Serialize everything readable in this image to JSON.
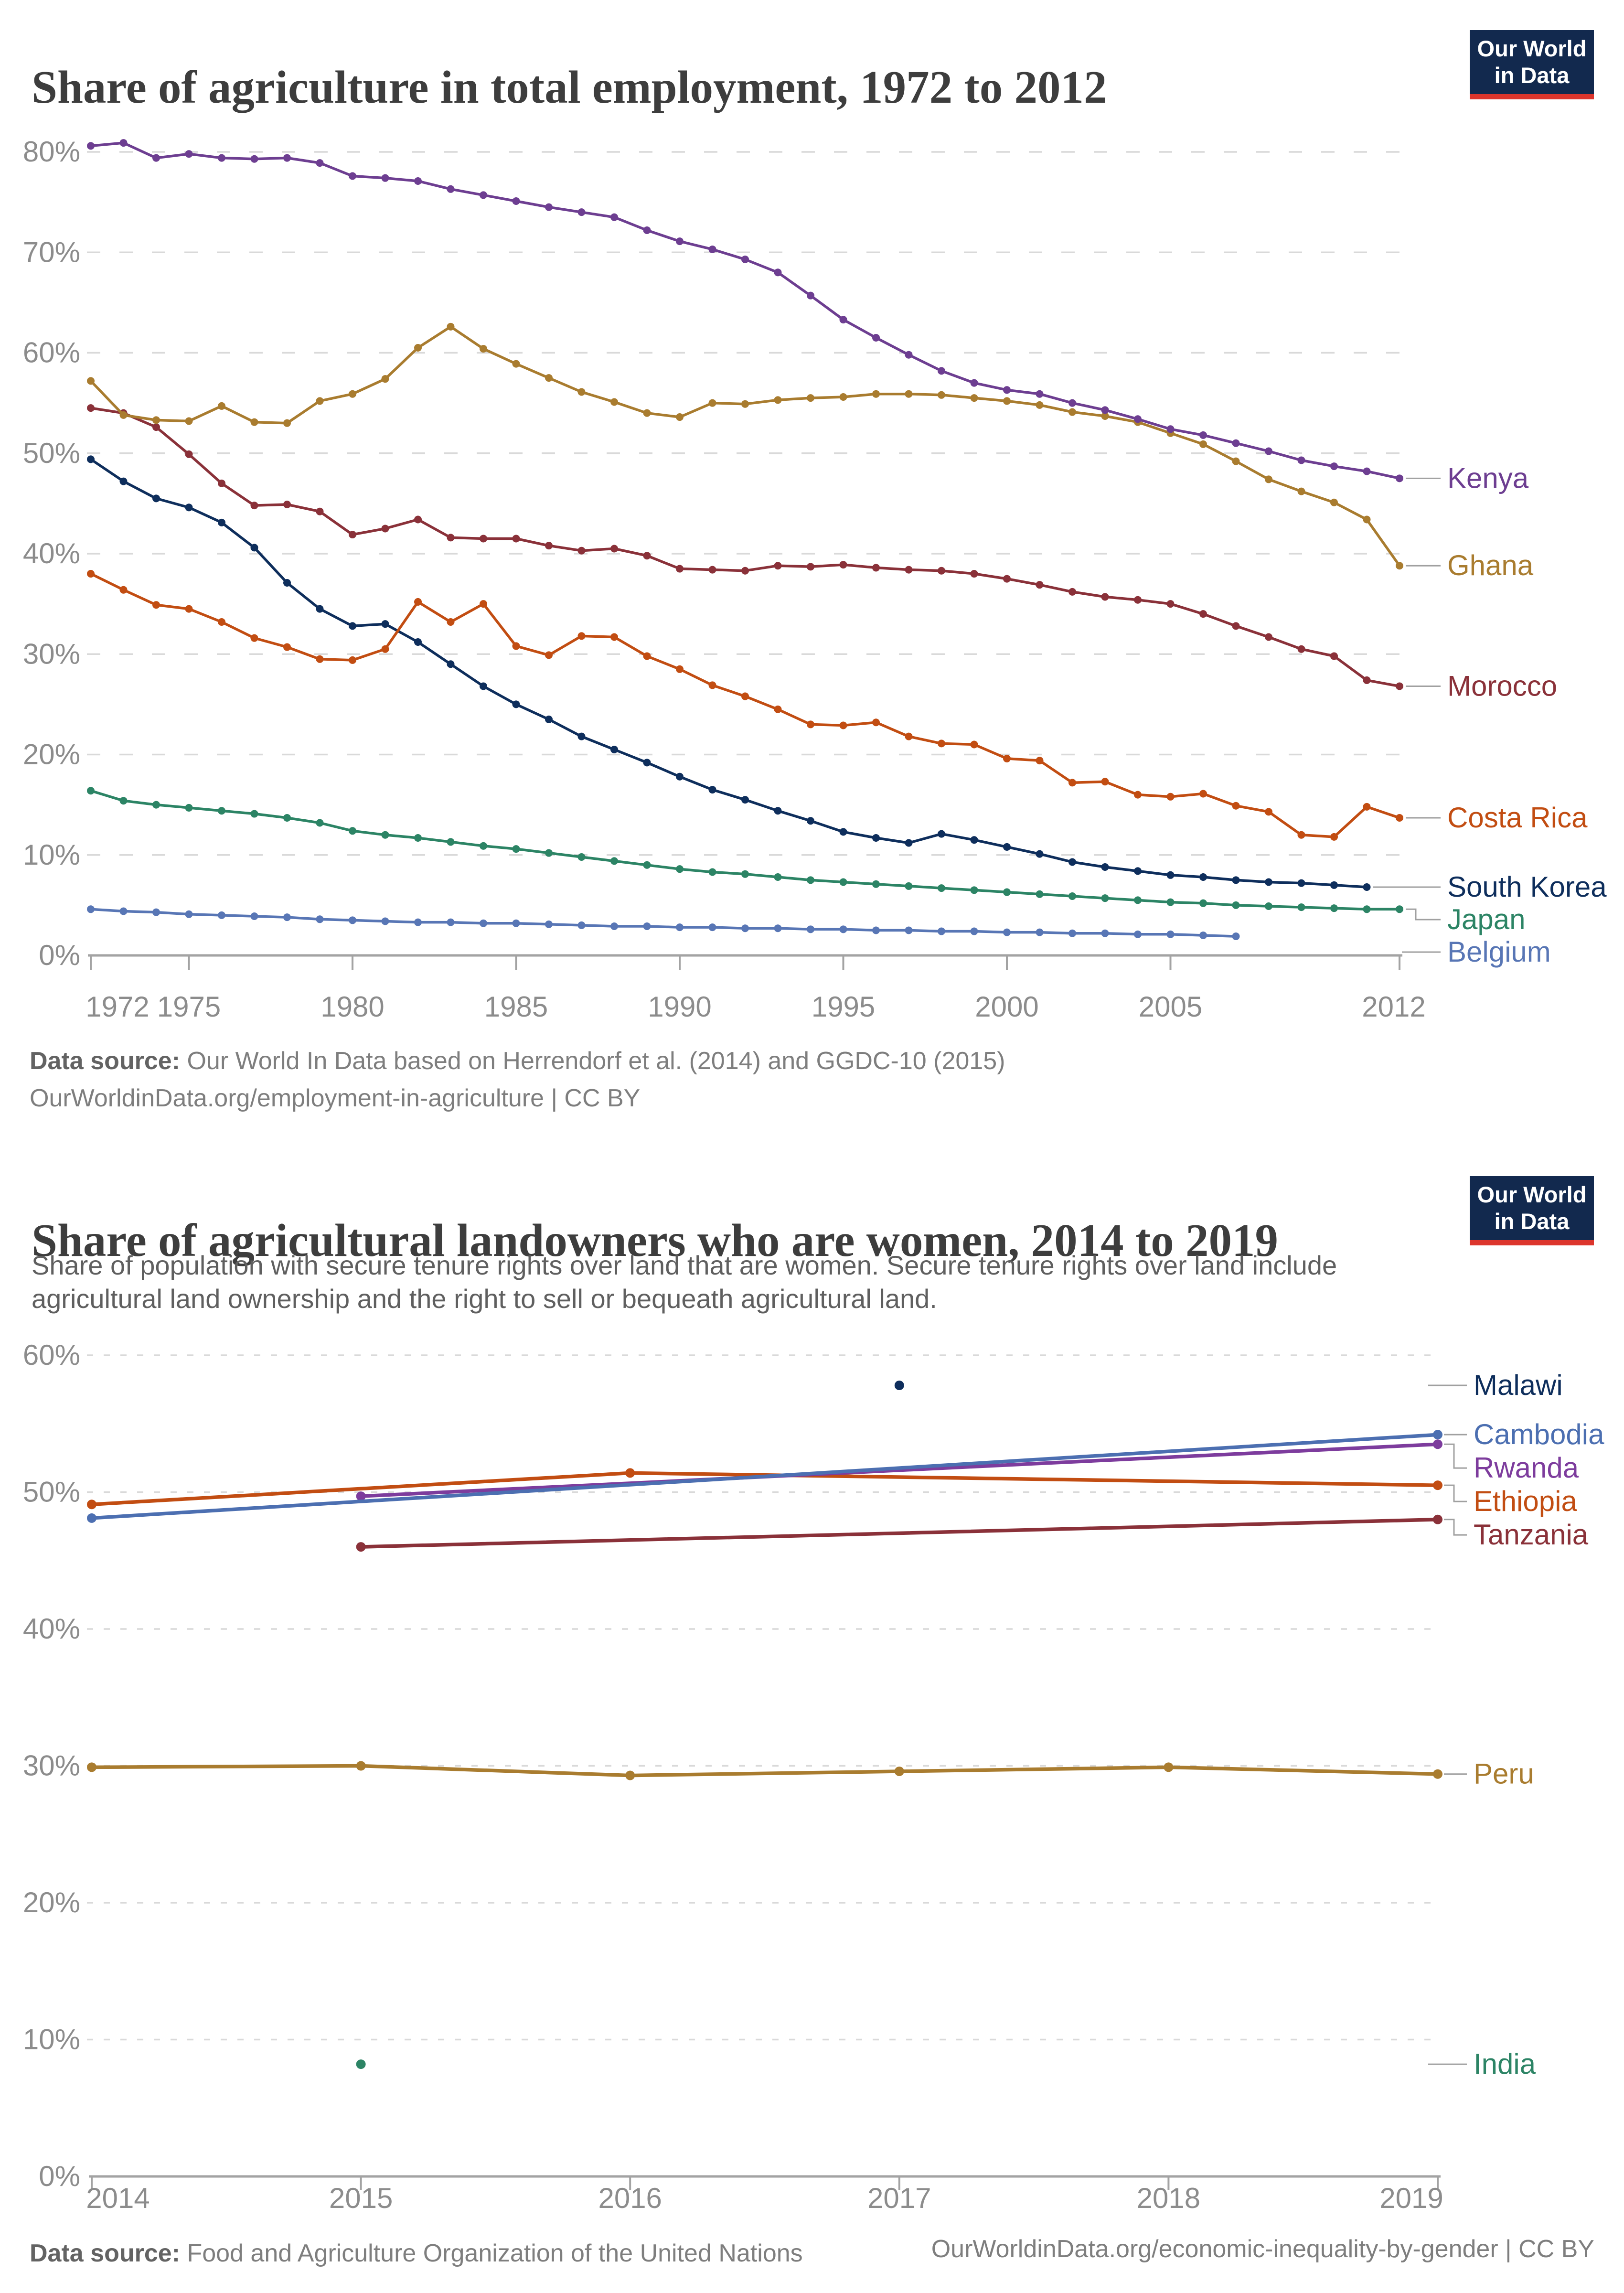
{
  "logo": {
    "line1": "Our World",
    "line2": "in Data",
    "bg_color": "#12294e",
    "stripe_color": "#dc352c"
  },
  "style_colors": {
    "title": "#3d3d3d",
    "subtitle": "#5f5f5f",
    "tick_text": "#8c8c8c",
    "gridline": "#d9d9d9",
    "axis": "#a3a3a3",
    "connector": "#a0a0a0",
    "footer": "#7e7e7e"
  },
  "charts": [
    {
      "title": "Share of agriculture in total employment, 1972 to 2012",
      "footer": {
        "label": "Data source:",
        "text": " Our World In Data based on Herrendorf et al. (2014) and GGDC-10 (2015)",
        "line2": "OurWorldinData.org/employment-in-agriculture | CC BY"
      },
      "chart_data": {
        "type": "line",
        "title": "Share of agriculture in total employment, 1972 to 2012",
        "xlabel": "",
        "ylabel": "",
        "xlim": [
          1972,
          2012
        ],
        "ylim": [
          0,
          80
        ],
        "y_format": "percent",
        "grid": true,
        "legend": "right-edge-labels",
        "x_ticks": [
          1972,
          1975,
          1980,
          1985,
          1990,
          1995,
          2000,
          2005,
          2012
        ],
        "y_ticks": [
          0,
          10,
          20,
          30,
          40,
          50,
          60,
          70,
          80
        ],
        "series": [
          {
            "name": "Belgium",
            "color": "#5876b5",
            "start_year": 1972,
            "values": [
              4.6,
              4.4,
              4.3,
              4.1,
              4.0,
              3.9,
              3.8,
              3.6,
              3.5,
              3.4,
              3.3,
              3.3,
              3.2,
              3.2,
              3.1,
              3.0,
              2.9,
              2.9,
              2.8,
              2.8,
              2.7,
              2.7,
              2.6,
              2.6,
              2.5,
              2.5,
              2.4,
              2.4,
              2.3,
              2.3,
              2.2,
              2.2,
              2.1,
              2.1,
              2.0,
              1.9
            ]
          },
          {
            "name": "Japan",
            "color": "#2c8465",
            "start_year": 1972,
            "values": [
              16.4,
              15.4,
              15.0,
              14.7,
              14.4,
              14.1,
              13.7,
              13.2,
              12.4,
              12.0,
              11.7,
              11.3,
              10.9,
              10.6,
              10.2,
              9.8,
              9.4,
              9.0,
              8.6,
              8.3,
              8.1,
              7.8,
              7.5,
              7.3,
              7.1,
              6.9,
              6.7,
              6.5,
              6.3,
              6.1,
              5.9,
              5.7,
              5.5,
              5.3,
              5.2,
              5.0,
              4.9,
              4.8,
              4.7,
              4.6,
              4.6
            ]
          },
          {
            "name": "South Korea",
            "color": "#0e2e5c",
            "start_year": 1972,
            "values": [
              49.4,
              47.2,
              45.5,
              44.6,
              43.1,
              40.6,
              37.1,
              34.5,
              32.8,
              33.0,
              31.2,
              29.0,
              26.8,
              25.0,
              23.5,
              21.8,
              20.5,
              19.2,
              17.8,
              16.5,
              15.5,
              14.4,
              13.4,
              12.3,
              11.7,
              11.2,
              12.1,
              11.5,
              10.8,
              10.1,
              9.3,
              8.8,
              8.4,
              8.0,
              7.8,
              7.5,
              7.3,
              7.2,
              7.0,
              6.8
            ]
          },
          {
            "name": "Costa Rica",
            "color": "#c24d12",
            "start_year": 1972,
            "values": [
              38.0,
              36.4,
              34.9,
              34.5,
              33.2,
              31.6,
              30.7,
              29.5,
              29.4,
              30.5,
              35.2,
              33.2,
              35.0,
              30.8,
              29.9,
              31.8,
              31.7,
              29.8,
              28.5,
              26.9,
              25.8,
              24.5,
              23.0,
              22.9,
              23.2,
              21.8,
              21.1,
              21.0,
              19.6,
              19.4,
              17.2,
              17.3,
              16.0,
              15.8,
              16.1,
              14.9,
              14.3,
              12.0,
              11.8,
              14.8,
              13.7
            ]
          },
          {
            "name": "Morocco",
            "color": "#8a3139",
            "start_year": 1972,
            "values": [
              54.5,
              54.0,
              52.6,
              49.9,
              47.0,
              44.8,
              44.9,
              44.2,
              41.9,
              42.5,
              43.4,
              41.6,
              41.5,
              41.5,
              40.8,
              40.3,
              40.5,
              39.8,
              38.5,
              38.4,
              38.3,
              38.8,
              38.7,
              38.9,
              38.6,
              38.4,
              38.3,
              38.0,
              37.5,
              36.9,
              36.2,
              35.7,
              35.4,
              35.0,
              34.0,
              32.8,
              31.7,
              30.5,
              29.8,
              27.4,
              26.8
            ]
          },
          {
            "name": "Ghana",
            "color": "#a97c2f",
            "start_year": 1972,
            "values": [
              57.2,
              53.8,
              53.3,
              53.2,
              54.7,
              53.1,
              53.0,
              55.2,
              55.9,
              57.4,
              60.5,
              62.6,
              60.4,
              58.9,
              57.5,
              56.1,
              55.1,
              54.0,
              53.6,
              55.0,
              54.9,
              55.3,
              55.5,
              55.6,
              55.9,
              55.9,
              55.8,
              55.5,
              55.2,
              54.8,
              54.1,
              53.7,
              53.1,
              52.0,
              50.9,
              49.2,
              47.4,
              46.2,
              45.1,
              43.4,
              38.8
            ]
          },
          {
            "name": "Kenya",
            "color": "#6d3e91",
            "start_year": 1972,
            "values": [
              80.6,
              80.9,
              79.4,
              79.8,
              79.4,
              79.3,
              79.4,
              78.9,
              77.6,
              77.4,
              77.1,
              76.3,
              75.7,
              75.1,
              74.5,
              74.0,
              73.5,
              72.2,
              71.1,
              70.3,
              69.3,
              68.0,
              65.7,
              63.3,
              61.5,
              59.8,
              58.2,
              57.0,
              56.3,
              55.9,
              55.0,
              54.3,
              53.4,
              52.4,
              51.8,
              51.0,
              50.2,
              49.3,
              48.7,
              48.2,
              47.5
            ]
          }
        ]
      }
    },
    {
      "title": "Share of agricultural landowners who are women, 2014 to 2019",
      "subtitle_lines": [
        "Share of population with secure tenure rights over land that are women. Secure tenure rights over land include",
        "agricultural land ownership and the right to sell or bequeath agricultural land."
      ],
      "footer": {
        "label": "Data source:",
        "text": " Food and Agriculture Organization of the United Nations",
        "right": "OurWorldinData.org/economic-inequality-by-gender | CC BY"
      },
      "chart_data": {
        "type": "line",
        "title": "Share of agricultural landowners who are women, 2014 to 2019",
        "xlabel": "",
        "ylabel": "",
        "xlim": [
          2014,
          2019
        ],
        "ylim": [
          0,
          60
        ],
        "y_format": "percent",
        "grid": true,
        "legend": "right-edge-labels",
        "x_ticks": [
          2014,
          2015,
          2016,
          2017,
          2018,
          2019
        ],
        "y_ticks": [
          0,
          10,
          20,
          30,
          40,
          50,
          60
        ],
        "series": [
          {
            "name": "Ethiopia",
            "color": "#c24d12",
            "points": [
              [
                2014,
                49.1
              ],
              [
                2016,
                51.4
              ],
              [
                2019,
                50.5
              ]
            ]
          },
          {
            "name": "Tanzania",
            "color": "#8a3139",
            "points": [
              [
                2015,
                46.0
              ],
              [
                2019,
                48.0
              ]
            ]
          },
          {
            "name": "Rwanda",
            "color": "#7d3c9d",
            "points": [
              [
                2015,
                49.7
              ],
              [
                2019,
                53.5
              ]
            ]
          },
          {
            "name": "Cambodia",
            "color": "#4c6fb1",
            "points": [
              [
                2014,
                48.1
              ],
              [
                2019,
                54.2
              ]
            ]
          },
          {
            "name": "Peru",
            "color": "#a97c2f",
            "points": [
              [
                2014,
                29.9
              ],
              [
                2015,
                30.0
              ],
              [
                2016,
                29.3
              ],
              [
                2017,
                29.6
              ],
              [
                2018,
                29.9
              ],
              [
                2019,
                29.4
              ]
            ]
          },
          {
            "name": "Malawi",
            "color": "#0e2e5c",
            "points": [
              [
                2017,
                57.8
              ]
            ]
          },
          {
            "name": "India",
            "color": "#2c8465",
            "points": [
              [
                2015,
                8.2
              ]
            ]
          }
        ]
      }
    }
  ]
}
